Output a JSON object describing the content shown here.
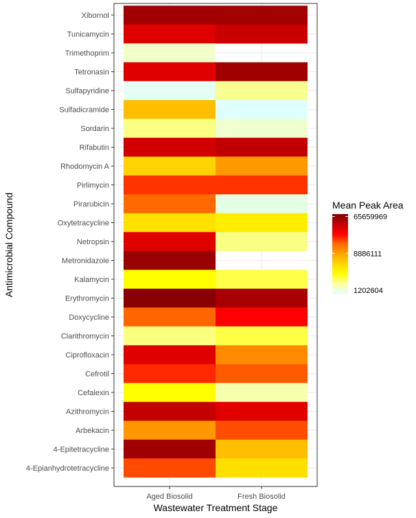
{
  "chart_data": {
    "type": "heatmap",
    "xlabel": "Wastewater Treatment Stage",
    "ylabel": "Antimicrobial Compound",
    "x_categories": [
      "Aged Biosolid",
      "Fresh Biosolid"
    ],
    "y_categories": [
      "Xibornol",
      "Tunicamycin",
      "Trimethoprim",
      "Tetronasin",
      "Sulfapyridine",
      "Sulfadicramide",
      "Sordarin",
      "Rifabutin",
      "Rhodomycin A",
      "Pirlimycin",
      "Pirarubicin",
      "Oxytetracycline",
      "Netropsin",
      "Metronidazole",
      "Kalamycin",
      "Erythromycin",
      "Doxycycline",
      "Clarithromycin",
      "Ciprofloxacin",
      "Cefrotil",
      "Cefalexin",
      "Azithromycin",
      "Arbekacin",
      "4-Epitetracycline",
      "4-Epianhydrotetracycline"
    ],
    "cells": [
      {
        "y": "Xibornol",
        "x": "Aged Biosolid",
        "value": 50000000,
        "color": "#a00000"
      },
      {
        "y": "Xibornol",
        "x": "Fresh Biosolid",
        "value": 48000000,
        "color": "#a30000"
      },
      {
        "y": "Tunicamycin",
        "x": "Aged Biosolid",
        "value": 30000000,
        "color": "#e00000"
      },
      {
        "y": "Tunicamycin",
        "x": "Fresh Biosolid",
        "value": 38000000,
        "color": "#c80000"
      },
      {
        "y": "Trimethoprim",
        "x": "Aged Biosolid",
        "value": 1800000,
        "color": "#f2ffc8"
      },
      {
        "y": "Tetronasin",
        "x": "Aged Biosolid",
        "value": 30000000,
        "color": "#e00000"
      },
      {
        "y": "Tetronasin",
        "x": "Fresh Biosolid",
        "value": 52000000,
        "color": "#a00000"
      },
      {
        "y": "Sulfapyridine",
        "x": "Aged Biosolid",
        "value": 1100000,
        "color": "#e5fff3"
      },
      {
        "y": "Sulfapyridine",
        "x": "Fresh Biosolid",
        "value": 2300000,
        "color": "#f7ff90"
      },
      {
        "y": "Sulfadicramide",
        "x": "Aged Biosolid",
        "value": 6200000,
        "color": "#ffbf00"
      },
      {
        "y": "Sulfadicramide",
        "x": "Fresh Biosolid",
        "value": 1050000,
        "color": "#dfffff"
      },
      {
        "y": "Sordarin",
        "x": "Aged Biosolid",
        "value": 2400000,
        "color": "#fbff82"
      },
      {
        "y": "Sordarin",
        "x": "Fresh Biosolid",
        "value": 1500000,
        "color": "#efffd0"
      },
      {
        "y": "Rifabutin",
        "x": "Aged Biosolid",
        "value": 36000000,
        "color": "#d10000"
      },
      {
        "y": "Rifabutin",
        "x": "Fresh Biosolid",
        "value": 40000000,
        "color": "#c00000"
      },
      {
        "y": "Rhodomycin A",
        "x": "Aged Biosolid",
        "value": 4800000,
        "color": "#ffd300"
      },
      {
        "y": "Rhodomycin A",
        "x": "Fresh Biosolid",
        "value": 8000000,
        "color": "#ff9900"
      },
      {
        "y": "Pirlimycin",
        "x": "Aged Biosolid",
        "value": 18000000,
        "color": "#ff3300"
      },
      {
        "y": "Pirlimycin",
        "x": "Fresh Biosolid",
        "value": 17000000,
        "color": "#ff3300"
      },
      {
        "y": "Pirarubicin",
        "x": "Aged Biosolid",
        "value": 11000000,
        "color": "#ff6a00"
      },
      {
        "y": "Pirarubicin",
        "x": "Fresh Biosolid",
        "value": 1300000,
        "color": "#e5ffe3"
      },
      {
        "y": "Oxytetracycline",
        "x": "Aged Biosolid",
        "value": 4500000,
        "color": "#ffe000"
      },
      {
        "y": "Oxytetracycline",
        "x": "Fresh Biosolid",
        "value": 3800000,
        "color": "#ffee00"
      },
      {
        "y": "Netropsin",
        "x": "Aged Biosolid",
        "value": 30000000,
        "color": "#e00000"
      },
      {
        "y": "Netropsin",
        "x": "Fresh Biosolid",
        "value": 2500000,
        "color": "#f9ff84"
      },
      {
        "y": "Metronidazole",
        "x": "Aged Biosolid",
        "value": 55000000,
        "color": "#9a0000"
      },
      {
        "y": "Kalamycin",
        "x": "Aged Biosolid",
        "value": 3500000,
        "color": "#ffff00"
      },
      {
        "y": "Kalamycin",
        "x": "Fresh Biosolid",
        "value": 2900000,
        "color": "#ffff4a"
      },
      {
        "y": "Erythromycin",
        "x": "Aged Biosolid",
        "value": 65000000,
        "color": "#880000"
      },
      {
        "y": "Erythromycin",
        "x": "Fresh Biosolid",
        "value": 50000000,
        "color": "#a80000"
      },
      {
        "y": "Doxycycline",
        "x": "Aged Biosolid",
        "value": 11000000,
        "color": "#ff6600"
      },
      {
        "y": "Doxycycline",
        "x": "Fresh Biosolid",
        "value": 25000000,
        "color": "#ff0000"
      },
      {
        "y": "Clarithromycin",
        "x": "Aged Biosolid",
        "value": 2300000,
        "color": "#faff80"
      },
      {
        "y": "Clarithromycin",
        "x": "Fresh Biosolid",
        "value": 3000000,
        "color": "#ffff45"
      },
      {
        "y": "Ciprofloxacin",
        "x": "Aged Biosolid",
        "value": 30000000,
        "color": "#e00000"
      },
      {
        "y": "Ciprofloxacin",
        "x": "Fresh Biosolid",
        "value": 8500000,
        "color": "#ff8c00"
      },
      {
        "y": "Cefrotil",
        "x": "Aged Biosolid",
        "value": 20000000,
        "color": "#ff2800"
      },
      {
        "y": "Cefrotil",
        "x": "Fresh Biosolid",
        "value": 12000000,
        "color": "#ff5a00"
      },
      {
        "y": "Cefalexin",
        "x": "Aged Biosolid",
        "value": 3500000,
        "color": "#ffff00"
      },
      {
        "y": "Cefalexin",
        "x": "Fresh Biosolid",
        "value": 2000000,
        "color": "#f5ffac"
      },
      {
        "y": "Azithromycin",
        "x": "Aged Biosolid",
        "value": 38000000,
        "color": "#c50000"
      },
      {
        "y": "Azithromycin",
        "x": "Fresh Biosolid",
        "value": 30000000,
        "color": "#e00000"
      },
      {
        "y": "Arbekacin",
        "x": "Aged Biosolid",
        "value": 8000000,
        "color": "#ff9600"
      },
      {
        "y": "Arbekacin",
        "x": "Fresh Biosolid",
        "value": 14000000,
        "color": "#ff4d00"
      },
      {
        "y": "4-Epitetracycline",
        "x": "Aged Biosolid",
        "value": 52000000,
        "color": "#a00000"
      },
      {
        "y": "4-Epitetracycline",
        "x": "Fresh Biosolid",
        "value": 6000000,
        "color": "#ffbf00"
      },
      {
        "y": "4-Epianhydrotetracycline",
        "x": "Aged Biosolid",
        "value": 15000000,
        "color": "#ff4a00"
      },
      {
        "y": "4-Epianhydrotetracycline",
        "x": "Fresh Biosolid",
        "value": 4600000,
        "color": "#ffdf00"
      }
    ],
    "legend": {
      "title": "Mean Peak Area",
      "placement": "right",
      "scale": "log",
      "breaks": [
        65659969,
        8886111,
        1202604
      ],
      "break_labels": [
        "65659969",
        "8886111",
        "1202604"
      ],
      "range": [
        1000000,
        75000000
      ],
      "gradient_colors": [
        "#800000",
        "#c00000",
        "#ff0000",
        "#ff6a00",
        "#ffa500",
        "#ffd700",
        "#ffff00",
        "#ffffa0",
        "#e0ffff"
      ]
    },
    "grid": true
  }
}
